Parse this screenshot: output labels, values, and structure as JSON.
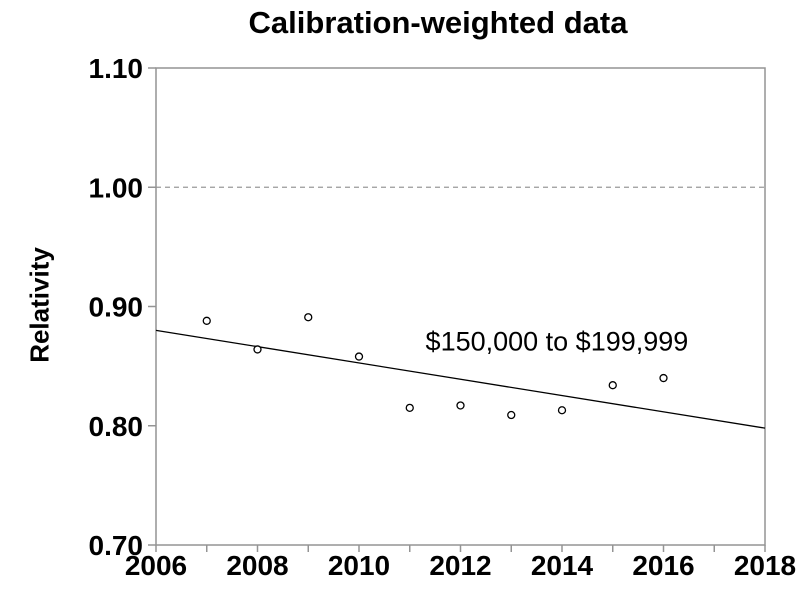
{
  "page": {
    "background": "#ffffff"
  },
  "chart_data": {
    "type": "scatter",
    "title": "Calibration-weighted data",
    "xlabel": "",
    "ylabel": "Relativity",
    "xlim": [
      2006,
      2018
    ],
    "ylim": [
      0.7,
      1.1
    ],
    "x_ticks": [
      2006,
      2008,
      2010,
      2012,
      2014,
      2016,
      2018
    ],
    "x_minor_tick_interval": 1,
    "y_ticks": [
      1.1,
      1.0,
      0.9,
      0.8,
      0.7
    ],
    "grid": "off",
    "legend": "none",
    "reference_line": {
      "y": 1.0,
      "style": "dashed"
    },
    "points": {
      "x": [
        2007,
        2008,
        2009,
        2010,
        2011,
        2012,
        2013,
        2014,
        2015,
        2016
      ],
      "y": [
        0.888,
        0.864,
        0.891,
        0.858,
        0.815,
        0.817,
        0.809,
        0.813,
        0.834,
        0.84
      ]
    },
    "trend_line": {
      "x1": 2006,
      "y1": 0.88,
      "x2": 2018,
      "y2": 0.798
    },
    "annotation": {
      "text": "$150,000 to $199,999",
      "x": 2013.9,
      "y": 0.87
    },
    "colors": {
      "data": "#000000",
      "axis": "#949494",
      "reference": "#999999",
      "text": "#000000",
      "point_fill": "#ffffff"
    }
  }
}
